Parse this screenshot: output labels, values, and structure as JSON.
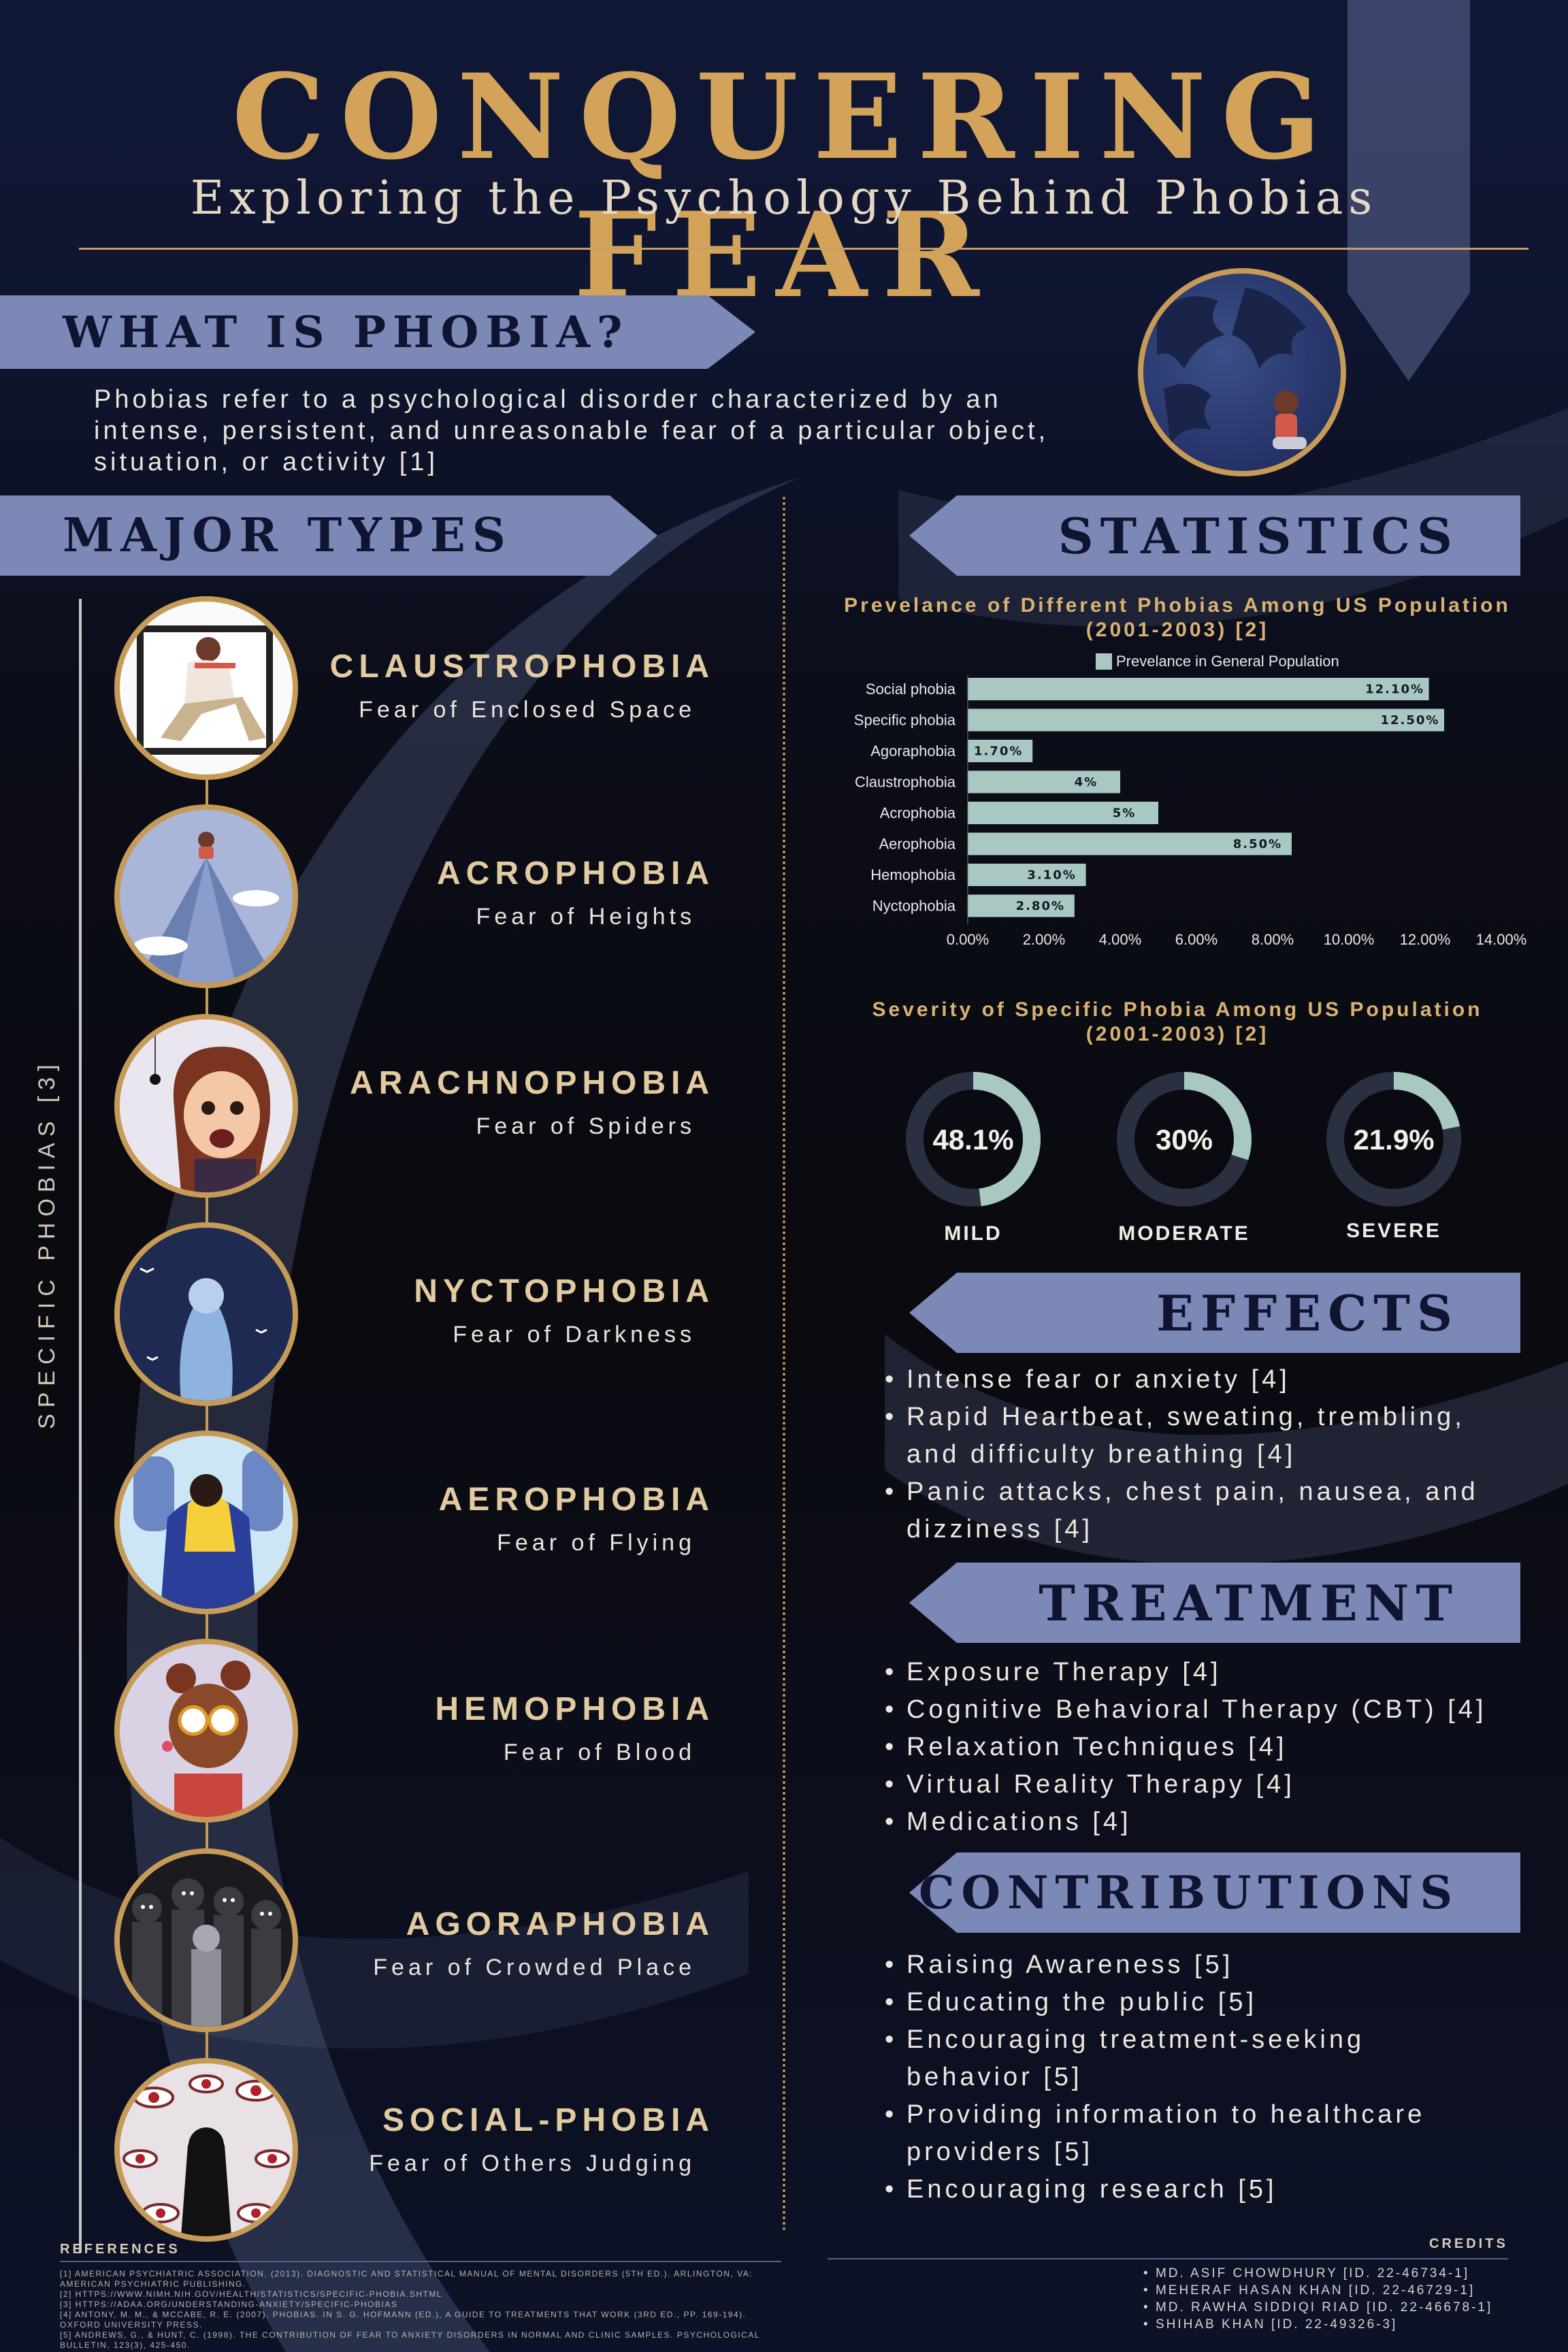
{
  "header": {
    "title": "CONQUERING FEAR",
    "subtitle": "Exploring the Psychology Behind Phobias"
  },
  "colors": {
    "gold": "#c69a57",
    "banner": "#7c88b6",
    "bar": "#a8c8c1",
    "navy": "#0f1430"
  },
  "what_is": {
    "heading": "WHAT IS PHOBIA?",
    "lines": [
      "Phobias refer to a psychological disorder characterized by an",
      "intense, persistent, and unreasonable fear of a particular object,",
      "situation, or activity [1]"
    ]
  },
  "major_types": {
    "heading": "MAJOR TYPES",
    "side_label": "SPECIFIC PHOBIAS [3]",
    "items": [
      {
        "name": "CLAUSTROPHOBIA",
        "desc": "Fear of Enclosed Space",
        "icon": "person-in-box-icon"
      },
      {
        "name": "ACROPHOBIA",
        "desc": "Fear of Heights",
        "icon": "mountain-peak-icon"
      },
      {
        "name": "ARACHNOPHOBIA",
        "desc": "Fear of Spiders",
        "icon": "spider-icon"
      },
      {
        "name": "NYCTOPHOBIA",
        "desc": "Fear of Darkness",
        "icon": "dark-figure-icon"
      },
      {
        "name": "AEROPHOBIA",
        "desc": "Fear of Flying",
        "icon": "airplane-seat-icon"
      },
      {
        "name": "HEMOPHOBIA",
        "desc": "Fear of Blood",
        "icon": "bleeding-finger-icon"
      },
      {
        "name": "AGORAPHOBIA",
        "desc": "Fear of Crowded Place",
        "icon": "crowd-icon"
      },
      {
        "name": "SOCIAL-PHOBIA",
        "desc": "Fear of Others Judging",
        "icon": "watching-eyes-icon"
      }
    ]
  },
  "statistics": {
    "heading": "STATISTICS",
    "prevalence_title": [
      "Prevelance of Different Phobias Among US Population",
      "(2001-2003) [2]"
    ],
    "severity_title": [
      "Severity of Specific Phobia Among US Population",
      "(2001-2003) [2]"
    ]
  },
  "chart_data": [
    {
      "type": "bar",
      "orientation": "horizontal",
      "title": "Prevelance of Different Phobias Among US Population (2001-2003) [2]",
      "categories": [
        "Social phobia",
        "Specific phobia",
        "Agoraphobia",
        "Claustrophobia",
        "Acrophobia",
        "Aerophobia",
        "Hemophobia",
        "Nyctophobia"
      ],
      "series": [
        {
          "name": "Prevelance in General Population",
          "values": [
            12.1,
            12.5,
            1.7,
            4,
            5,
            8.5,
            3.1,
            2.8
          ]
        }
      ],
      "data_labels": [
        "12.10%",
        "12.50%",
        "1.70%",
        "4%",
        "5%",
        "8.50%",
        "3.10%",
        "2.80%"
      ],
      "xticks": [
        "0.00%",
        "2.00%",
        "4.00%",
        "6.00%",
        "8.00%",
        "10.00%",
        "12.00%",
        "14.00%"
      ],
      "xlim": [
        0,
        14
      ],
      "legend": "top",
      "grid": false
    },
    {
      "type": "pie",
      "style": "donut",
      "title": "Severity of Specific Phobia Among US Population (2001-2003) [2]",
      "categories": [
        "MILD",
        "MODERATE",
        "SEVERE"
      ],
      "values": [
        48.1,
        30,
        21.9
      ],
      "labels": [
        "48.1%",
        "30%",
        "21.9%"
      ]
    }
  ],
  "effects": {
    "heading": "EFFECTS",
    "items": [
      [
        "Intense fear or anxiety [4]"
      ],
      [
        "Rapid Heartbeat, sweating, trembling,",
        "and difficulty breathing [4]"
      ],
      [
        "Panic attacks, chest pain, nausea, and",
        "dizziness [4]"
      ]
    ]
  },
  "treatment": {
    "heading": "TREATMENT",
    "items": [
      [
        "Exposure Therapy [4]"
      ],
      [
        "Cognitive Behavioral Therapy (CBT) [4]"
      ],
      [
        "Relaxation Techniques [4]"
      ],
      [
        "Virtual Reality Therapy [4]"
      ],
      [
        "Medications [4]"
      ]
    ]
  },
  "contributions": {
    "heading": "CONTRIBUTIONS",
    "items": [
      [
        "Raising Awareness [5]"
      ],
      [
        "Educating the public [5]"
      ],
      [
        "Encouraging treatment-seeking",
        "behavior [5]"
      ],
      [
        "Providing information to healthcare",
        "providers [5]"
      ],
      [
        "Encouraging research [5]"
      ]
    ]
  },
  "references": {
    "heading": "REFERENCES",
    "lines": [
      "[1] AMERICAN PSYCHIATRIC ASSOCIATION. (2013). DIAGNOSTIC AND STATISTICAL MANUAL OF MENTAL DISORDERS (5TH ED.). ARLINGTON, VA:",
      "AMERICAN PSYCHIATRIC PUBLISHING.",
      "[2] HTTPS://WWW.NIMH.NIH.GOV/HEALTH/STATISTICS/SPECIFIC-PHOBIA.SHTML",
      "[3] HTTPS://ADAA.ORG/UNDERSTANDING-ANXIETY/SPECIFIC-PHOBIAS",
      "[4] ANTONY, M. M., & MCCABE, R. E. (2007). PHOBIAS. IN S. G. HOFMANN (ED.), A GUIDE TO TREATMENTS THAT WORK (3RD ED., PP. 169-194).",
      "OXFORD UNIVERSITY PRESS.",
      "[5] ANDREWS, G., & HUNT, C. (1998). THE CONTRIBUTION OF FEAR TO ANXIETY DISORDERS IN NORMAL AND CLINIC SAMPLES. PSYCHOLOGICAL",
      "BULLETIN, 123(3), 425-450."
    ]
  },
  "credits": {
    "heading": "CREDITS",
    "people": [
      "MD. ASIF CHOWDHURY [ID. 22-46734-1]",
      "MEHERAF HASAN KHAN [ID. 22-46729-1]",
      "MD. RAWHA SIDDIQI RIAD [ID. 22-46678-1]",
      "SHIHAB KHAN [ID. 22-49326-3]"
    ]
  }
}
